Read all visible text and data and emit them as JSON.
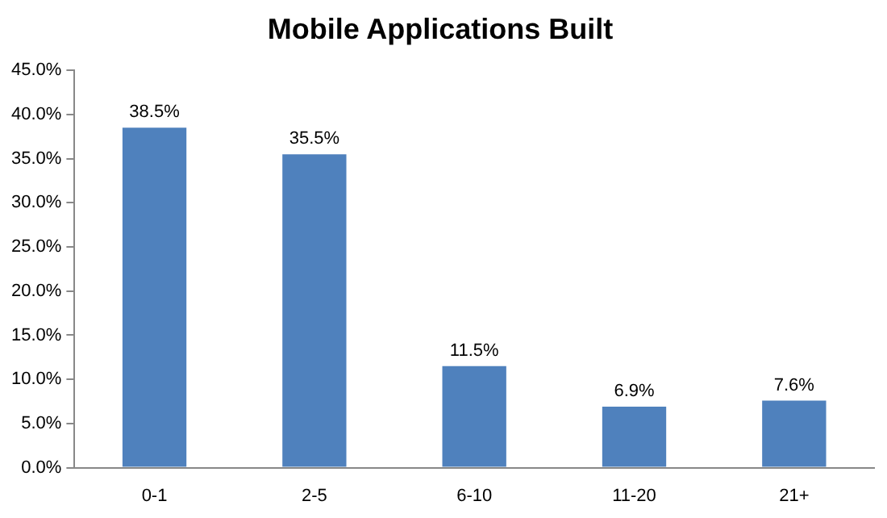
{
  "chart_data": {
    "type": "bar",
    "title": "Mobile Applications Built",
    "categories": [
      "0-1",
      "2-5",
      "6-10",
      "11-20",
      "21+"
    ],
    "values": [
      38.5,
      35.5,
      11.5,
      6.9,
      7.6
    ],
    "value_labels": [
      "38.5%",
      "35.5%",
      "11.5%",
      "6.9%",
      "7.6%"
    ],
    "color": "#4f81bd",
    "ylim": [
      0,
      45
    ],
    "yticks": [
      {
        "value": 0,
        "label": "0.0%"
      },
      {
        "value": 5,
        "label": "5.0%"
      },
      {
        "value": 10,
        "label": "10.0%"
      },
      {
        "value": 15,
        "label": "15.0%"
      },
      {
        "value": 20,
        "label": "20.0%"
      },
      {
        "value": 25,
        "label": "25.0%"
      },
      {
        "value": 30,
        "label": "30.0%"
      },
      {
        "value": 35,
        "label": "35.0%"
      },
      {
        "value": 40,
        "label": "40.0%"
      },
      {
        "value": 45,
        "label": "45.0%"
      }
    ],
    "grid": false,
    "legend": false
  }
}
